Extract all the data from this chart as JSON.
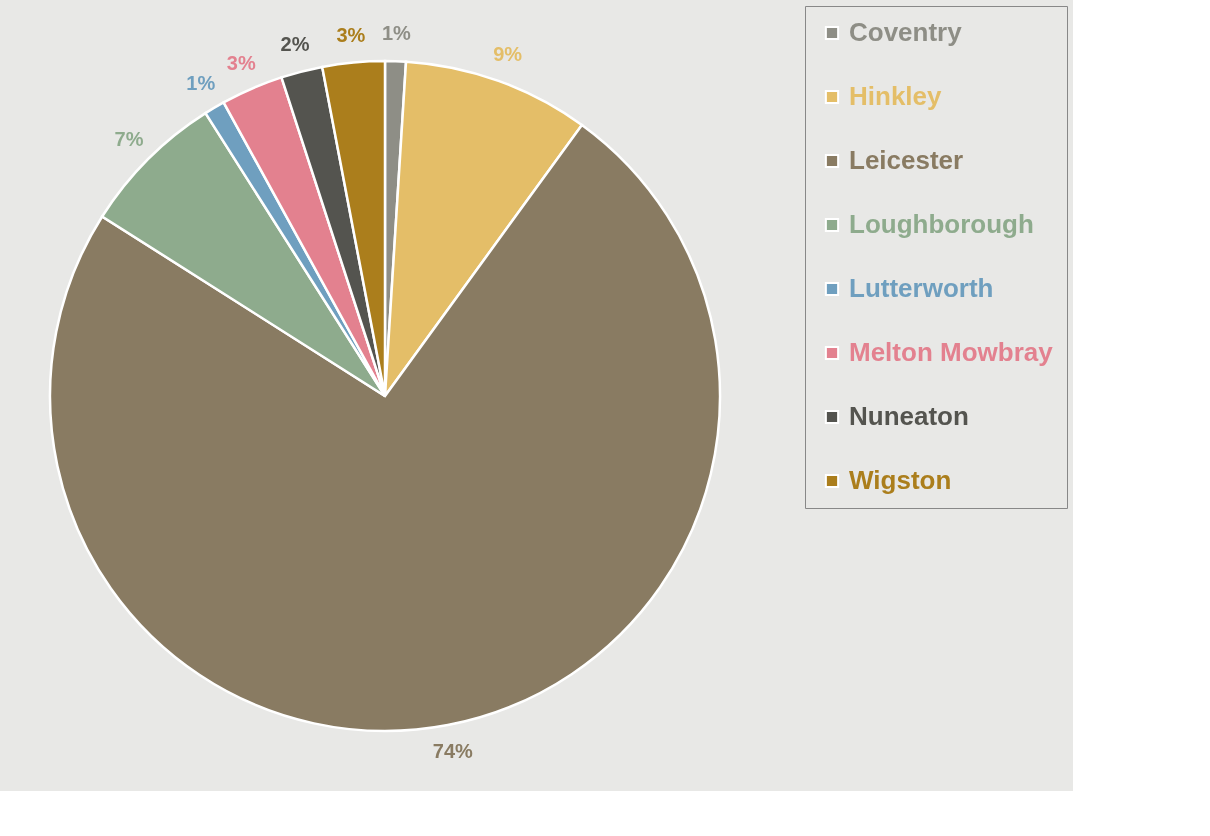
{
  "chart_data": {
    "type": "pie",
    "categories": [
      "Coventry",
      "Hinkley",
      "Leicester",
      "Loughborough",
      "Lutterworth",
      "Melton Mowbray",
      "Nuneaton",
      "Wigston"
    ],
    "values": [
      1,
      9,
      74,
      7,
      1,
      3,
      2,
      3
    ],
    "colors": [
      "#8e8e86",
      "#e4be68",
      "#897b62",
      "#8eab8d",
      "#6f9fbf",
      "#e3818f",
      "#54544f",
      "#ab7e1c"
    ],
    "value_labels": [
      "1%",
      "9%",
      "74%",
      "7%",
      "1%",
      "3%",
      "2%",
      "3%"
    ],
    "legend": "right"
  }
}
